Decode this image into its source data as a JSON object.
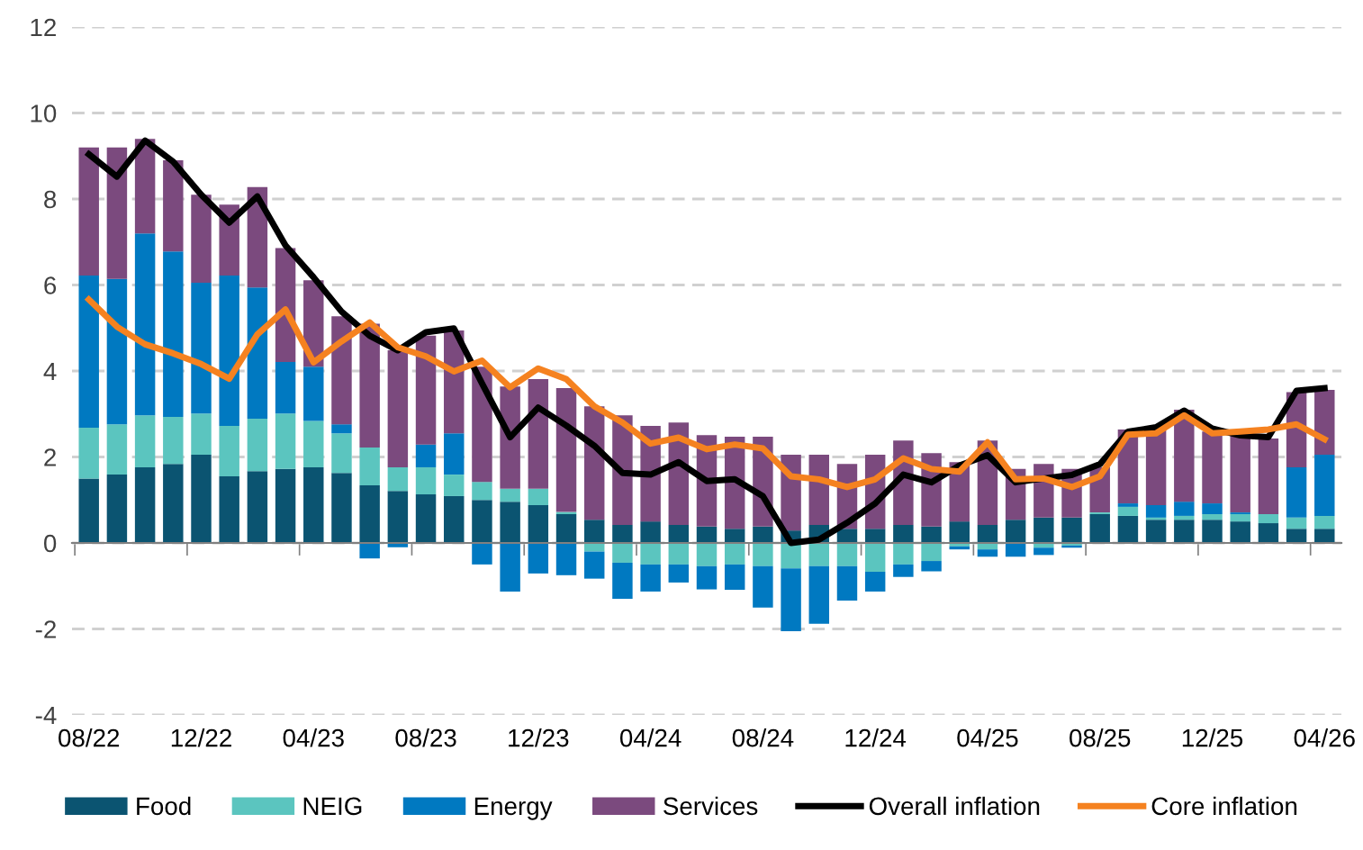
{
  "chart_data": {
    "type": "bar",
    "stacked": true,
    "categories": [
      "08/22",
      null,
      null,
      null,
      "12/22",
      null,
      null,
      null,
      "04/23",
      null,
      null,
      null,
      "08/23",
      null,
      null,
      null,
      "12/23",
      null,
      null,
      null,
      "04/24",
      null,
      null,
      null,
      "08/24",
      null,
      null,
      null,
      "12/24",
      null,
      null,
      null,
      "04/25",
      null,
      null,
      null,
      "08/25",
      null,
      null,
      null,
      "12/25",
      null,
      null,
      null,
      "04/26"
    ],
    "series": [
      {
        "name": "Food",
        "color": "#0b5471",
        "values": [
          1.5,
          1.59,
          1.76,
          1.84,
          2.05,
          1.55,
          1.67,
          1.72,
          1.76,
          1.63,
          1.34,
          1.21,
          1.13,
          1.09,
          1.0,
          0.96,
          0.88,
          0.67,
          0.54,
          0.42,
          0.5,
          0.42,
          0.38,
          0.33,
          0.38,
          0.29,
          0.42,
          0.33,
          0.33,
          0.42,
          0.38,
          0.5,
          0.42,
          0.54,
          0.59,
          0.59,
          0.67,
          0.63,
          0.54,
          0.54,
          0.54,
          0.5,
          0.46,
          0.33,
          0.33
        ]
      },
      {
        "name": "NEIG",
        "color": "#5bc5bf",
        "values": [
          1.18,
          1.17,
          1.21,
          1.09,
          0.96,
          1.17,
          1.22,
          1.29,
          1.08,
          0.92,
          0.88,
          0.55,
          0.63,
          0.5,
          0.42,
          0.3,
          0.38,
          0.05,
          -0.2,
          -0.46,
          -0.5,
          -0.5,
          -0.54,
          -0.5,
          -0.54,
          -0.59,
          -0.54,
          -0.54,
          -0.67,
          -0.5,
          -0.42,
          -0.08,
          -0.15,
          0,
          -0.11,
          -0.06,
          0.04,
          0.21,
          0.05,
          0.09,
          0.13,
          0.17,
          0.21,
          0.26,
          0.3
        ]
      },
      {
        "name": "Energy",
        "color": "#0079c1",
        "values": [
          3.54,
          3.38,
          4.23,
          3.85,
          3.04,
          3.5,
          3.05,
          1.2,
          1.26,
          0.21,
          -0.36,
          -0.1,
          0.53,
          0.96,
          -0.5,
          -1.13,
          -0.71,
          -0.75,
          -0.63,
          -0.84,
          -0.63,
          -0.42,
          -0.54,
          -0.59,
          -0.96,
          -1.46,
          -1.34,
          -0.8,
          -0.46,
          -0.29,
          -0.24,
          -0.07,
          -0.17,
          -0.32,
          -0.17,
          -0.05,
          0,
          0.08,
          0.29,
          0.33,
          0.25,
          0.04,
          0,
          1.17,
          1.42
        ]
      },
      {
        "name": "Services",
        "color": "#7b4a7e",
        "values": [
          2.98,
          3.06,
          2.2,
          2.12,
          2.05,
          1.65,
          2.34,
          2.65,
          2.01,
          2.51,
          2.88,
          2.72,
          2.53,
          2.39,
          2.68,
          2.38,
          2.55,
          2.88,
          2.64,
          2.55,
          2.22,
          2.38,
          2.13,
          2.14,
          2.09,
          1.76,
          1.63,
          1.51,
          1.72,
          1.96,
          1.71,
          1.38,
          1.96,
          1.18,
          1.25,
          1.13,
          1.05,
          1.72,
          1.76,
          2.14,
          1.67,
          1.8,
          1.76,
          1.75,
          1.51
        ]
      },
      {
        "name": "Overall inflation",
        "type": "line",
        "color": "#000000",
        "values": [
          9.04,
          8.52,
          9.36,
          8.87,
          8.1,
          7.45,
          8.06,
          6.92,
          6.18,
          5.38,
          4.82,
          4.48,
          4.9,
          4.99,
          3.71,
          2.46,
          3.15,
          2.73,
          2.26,
          1.63,
          1.59,
          1.88,
          1.44,
          1.48,
          1.09,
          0.0,
          0.08,
          0.47,
          0.92,
          1.59,
          1.41,
          1.8,
          2.04,
          1.41,
          1.5,
          1.58,
          1.83,
          2.59,
          2.69,
          3.08,
          2.66,
          2.5,
          2.46,
          3.54,
          3.6
        ]
      },
      {
        "name": "Core inflation",
        "type": "line",
        "color": "#f58220",
        "values": [
          5.66,
          5.03,
          4.62,
          4.41,
          4.16,
          3.82,
          4.85,
          5.43,
          4.2,
          4.69,
          5.13,
          4.55,
          4.34,
          3.99,
          4.24,
          3.62,
          4.06,
          3.81,
          3.18,
          2.8,
          2.31,
          2.45,
          2.18,
          2.29,
          2.2,
          1.55,
          1.48,
          1.3,
          1.48,
          1.97,
          1.72,
          1.66,
          2.34,
          1.48,
          1.5,
          1.3,
          1.55,
          2.52,
          2.55,
          2.97,
          2.55,
          2.59,
          2.64,
          2.76,
          2.41
        ]
      }
    ],
    "ylim": [
      -4,
      12
    ],
    "yticks": [
      -4,
      -2,
      0,
      2,
      4,
      6,
      8,
      10,
      12
    ],
    "grid": "y",
    "legend": "bottom"
  }
}
